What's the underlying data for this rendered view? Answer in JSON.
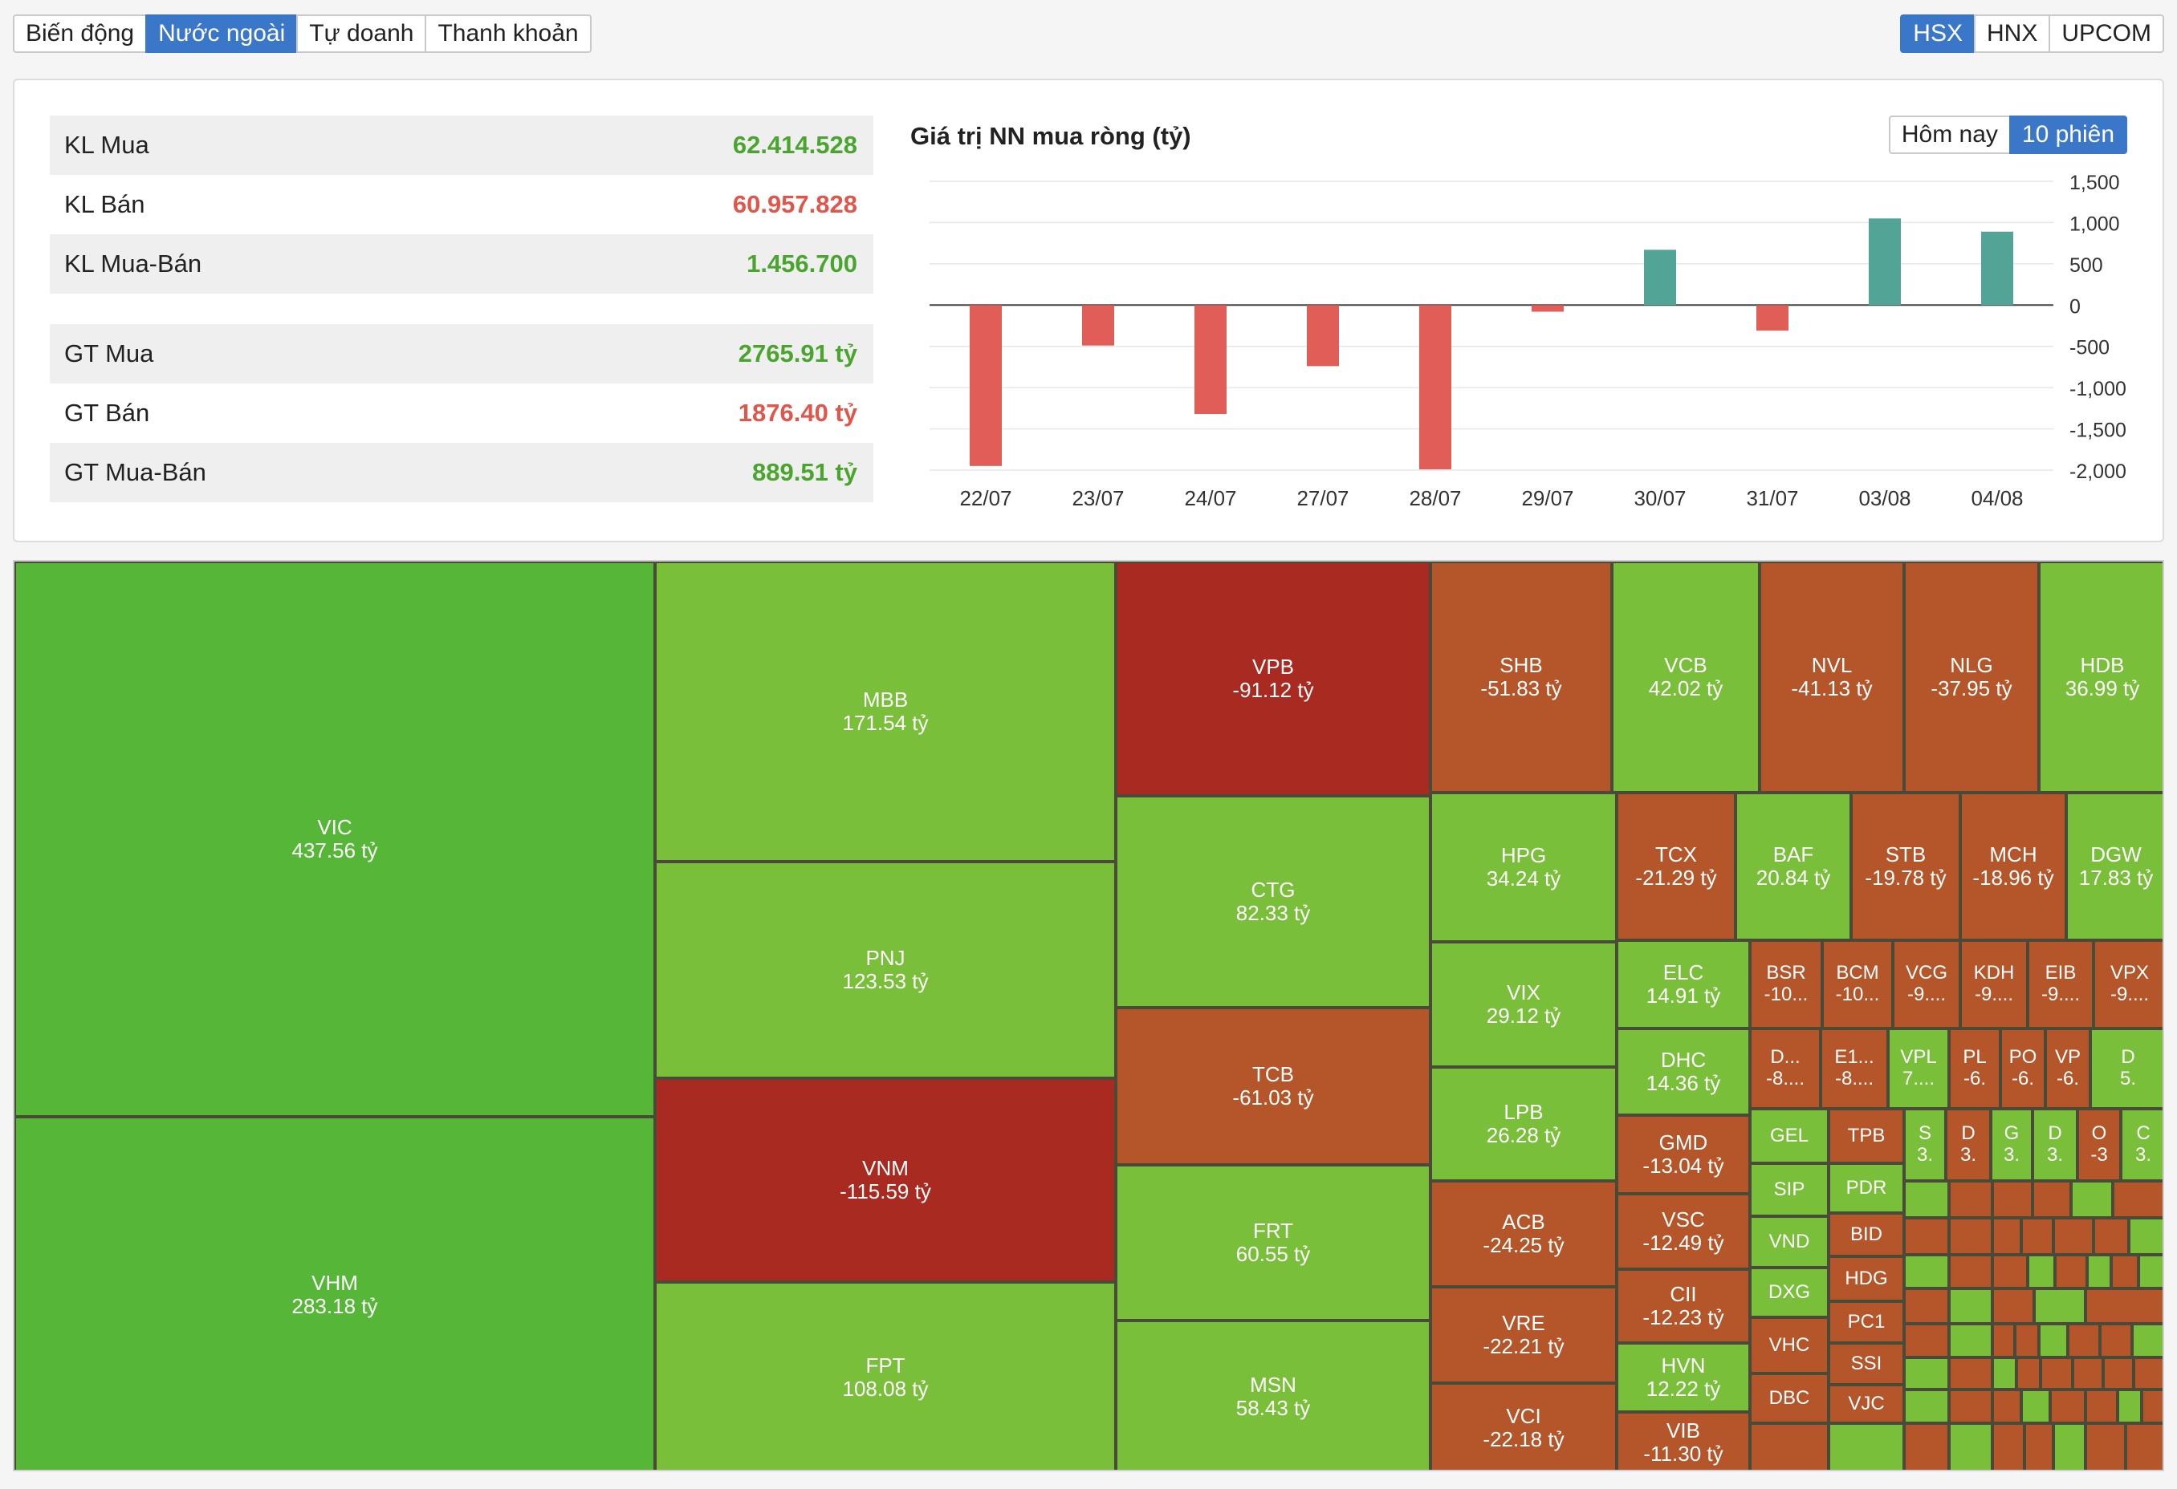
{
  "tabs": [
    {
      "label": "Biến động",
      "active": false
    },
    {
      "label": "Nước ngoài",
      "active": true
    },
    {
      "label": "Tự doanh",
      "active": false
    },
    {
      "label": "Thanh khoản",
      "active": false
    }
  ],
  "exchanges": [
    {
      "label": "HSX",
      "active": true
    },
    {
      "label": "HNX",
      "active": false
    },
    {
      "label": "UPCOM",
      "active": false
    }
  ],
  "stats": {
    "kl_mua": {
      "label": "KL Mua",
      "value": "62.414.528"
    },
    "kl_ban": {
      "label": "KL Bán",
      "value": "60.957.828"
    },
    "kl_net": {
      "label": "KL Mua-Bán",
      "value": "1.456.700"
    },
    "gt_mua": {
      "label": "GT Mua",
      "value": "2765.91 tỷ"
    },
    "gt_ban": {
      "label": "GT Bán",
      "value": "1876.40 tỷ"
    },
    "gt_net": {
      "label": "GT Mua-Bán",
      "value": "889.51 tỷ"
    }
  },
  "range_buttons": [
    {
      "label": "Hôm nay",
      "active": false
    },
    {
      "label": "10 phiên",
      "active": true
    }
  ],
  "colors": {
    "positive": "#4aa52e",
    "negative": "#e0564a",
    "bar_up": "#52a596",
    "bar_down": "#e05d58",
    "tile_strong_up": "#56b638",
    "tile_up": "#79bf3a",
    "tile_down": "#b4552a",
    "tile_strong_down": "#a82a20",
    "active": "#3a77c9"
  },
  "chart_data": {
    "type": "bar",
    "title": "Giá trị NN mua ròng (tỷ)",
    "categories": [
      "22/07",
      "23/07",
      "24/07",
      "27/07",
      "28/07",
      "29/07",
      "30/07",
      "31/07",
      "03/08",
      "04/08"
    ],
    "values": [
      -1950,
      -490,
      -1320,
      -740,
      -1990,
      -80,
      670,
      -310,
      1050,
      890
    ],
    "ylim": [
      -2000,
      1500
    ],
    "yticks": [
      {
        "v": 1500,
        "label": "1,500"
      },
      {
        "v": 1000,
        "label": "1,000"
      },
      {
        "v": 500,
        "label": "500"
      },
      {
        "v": 0,
        "label": "0"
      },
      {
        "v": -500,
        "label": "-500"
      },
      {
        "v": -1000,
        "label": "-1,000"
      },
      {
        "v": -1500,
        "label": "-1,500"
      },
      {
        "v": -2000,
        "label": "-2,000"
      }
    ],
    "grid": true,
    "axis_side": "right"
  },
  "treemap": [
    {
      "sym": "VIC",
      "val": "437.56 tỷ",
      "c": "su",
      "r": [
        0,
        0,
        798,
        692
      ]
    },
    {
      "sym": "VHM",
      "val": "283.18 tỷ",
      "c": "su",
      "r": [
        0,
        692,
        798,
        444
      ]
    },
    {
      "sym": "MBB",
      "val": "171.54 tỷ",
      "c": "up",
      "r": [
        798,
        0,
        574,
        374
      ]
    },
    {
      "sym": "PNJ",
      "val": "123.53 tỷ",
      "c": "up",
      "r": [
        798,
        374,
        574,
        270
      ]
    },
    {
      "sym": "VNM",
      "val": "-115.59 tỷ",
      "c": "sd",
      "r": [
        798,
        644,
        574,
        254
      ]
    },
    {
      "sym": "FPT",
      "val": "108.08 tỷ",
      "c": "up",
      "r": [
        798,
        898,
        574,
        238
      ]
    },
    {
      "sym": "VPB",
      "val": "-91.12 tỷ",
      "c": "sd",
      "r": [
        1372,
        0,
        392,
        292
      ]
    },
    {
      "sym": "CTG",
      "val": "82.33 tỷ",
      "c": "up",
      "r": [
        1372,
        292,
        392,
        264
      ]
    },
    {
      "sym": "TCB",
      "val": "-61.03 tỷ",
      "c": "dn",
      "r": [
        1372,
        556,
        392,
        196
      ]
    },
    {
      "sym": "FRT",
      "val": "60.55 tỷ",
      "c": "up",
      "r": [
        1372,
        752,
        392,
        194
      ]
    },
    {
      "sym": "MSN",
      "val": "58.43 tỷ",
      "c": "up",
      "r": [
        1372,
        946,
        392,
        190
      ]
    },
    {
      "sym": "SHB",
      "val": "-51.83 tỷ",
      "c": "dn",
      "r": [
        1764,
        0,
        226,
        288
      ]
    },
    {
      "sym": "VCB",
      "val": "42.02 tỷ",
      "c": "up",
      "r": [
        1990,
        0,
        184,
        288
      ]
    },
    {
      "sym": "NVL",
      "val": "-41.13 tỷ",
      "c": "dn",
      "r": [
        2174,
        0,
        180,
        288
      ]
    },
    {
      "sym": "NLG",
      "val": "-37.95 tỷ",
      "c": "dn",
      "r": [
        2354,
        0,
        168,
        288
      ]
    },
    {
      "sym": "HDB",
      "val": "36.99 tỷ",
      "c": "up",
      "r": [
        2522,
        0,
        158,
        288
      ]
    },
    {
      "sym": "HPG",
      "val": "34.24 tỷ",
      "c": "up",
      "r": [
        1764,
        288,
        232,
        186
      ]
    },
    {
      "sym": "VIX",
      "val": "29.12 tỷ",
      "c": "up",
      "r": [
        1764,
        474,
        232,
        156
      ]
    },
    {
      "sym": "LPB",
      "val": "26.28 tỷ",
      "c": "up",
      "r": [
        1764,
        630,
        232,
        142
      ]
    },
    {
      "sym": "ACB",
      "val": "-24.25 tỷ",
      "c": "dn",
      "r": [
        1764,
        772,
        232,
        132
      ]
    },
    {
      "sym": "VRE",
      "val": "-22.21 tỷ",
      "c": "dn",
      "r": [
        1764,
        904,
        232,
        120
      ]
    },
    {
      "sym": "VCI",
      "val": "-22.18 tỷ",
      "c": "dn",
      "r": [
        1764,
        1024,
        232,
        112
      ]
    },
    {
      "sym": "TCX",
      "val": "-21.29 tỷ",
      "c": "dn",
      "r": [
        1996,
        288,
        148,
        184
      ]
    },
    {
      "sym": "BAF",
      "val": "20.84 tỷ",
      "c": "up",
      "r": [
        2144,
        288,
        144,
        184
      ]
    },
    {
      "sym": "STB",
      "val": "-19.78 tỷ",
      "c": "dn",
      "r": [
        2288,
        288,
        136,
        184
      ]
    },
    {
      "sym": "MCH",
      "val": "-18.96 tỷ",
      "c": "dn",
      "r": [
        2424,
        288,
        132,
        184
      ]
    },
    {
      "sym": "DGW",
      "val": "17.83 tỷ",
      "c": "up",
      "r": [
        2556,
        288,
        124,
        184
      ]
    },
    {
      "sym": "ELC",
      "val": "14.91 tỷ",
      "c": "up",
      "r": [
        1996,
        472,
        166,
        110
      ]
    },
    {
      "sym": "DHC",
      "val": "14.36 tỷ",
      "c": "up",
      "r": [
        1996,
        582,
        166,
        108
      ]
    },
    {
      "sym": "GMD",
      "val": "-13.04 tỷ",
      "c": "dn",
      "r": [
        1996,
        690,
        166,
        98
      ]
    },
    {
      "sym": "VSC",
      "val": "-12.49 tỷ",
      "c": "dn",
      "r": [
        1996,
        788,
        166,
        94
      ]
    },
    {
      "sym": "CII",
      "val": "-12.23 tỷ",
      "c": "dn",
      "r": [
        1996,
        882,
        166,
        92
      ]
    },
    {
      "sym": "HVN",
      "val": "12.22 tỷ",
      "c": "up",
      "r": [
        1996,
        974,
        166,
        86
      ]
    },
    {
      "sym": "VIB",
      "val": "-11.30 tỷ",
      "c": "dn",
      "r": [
        1996,
        1060,
        166,
        76
      ]
    },
    {
      "sym": "BSR",
      "val": "-10...",
      "c": "dn",
      "r": [
        2162,
        472,
        90,
        110
      ]
    },
    {
      "sym": "BCM",
      "val": "-10...",
      "c": "dn",
      "r": [
        2252,
        472,
        88,
        110
      ]
    },
    {
      "sym": "VCG",
      "val": "-9....",
      "c": "dn",
      "r": [
        2340,
        472,
        84,
        110
      ]
    },
    {
      "sym": "KDH",
      "val": "-9....",
      "c": "dn",
      "r": [
        2424,
        472,
        84,
        110
      ]
    },
    {
      "sym": "EIB",
      "val": "-9....",
      "c": "dn",
      "r": [
        2508,
        472,
        82,
        110
      ]
    },
    {
      "sym": "VPX",
      "val": "-9....",
      "c": "dn",
      "r": [
        2590,
        472,
        90,
        110
      ]
    },
    {
      "sym": "D...",
      "val": "-8....",
      "c": "dn",
      "r": [
        2162,
        582,
        88,
        100
      ]
    },
    {
      "sym": "E1...",
      "val": "-8....",
      "c": "dn",
      "r": [
        2250,
        582,
        84,
        100
      ]
    },
    {
      "sym": "VPL",
      "val": "7....",
      "c": "up",
      "r": [
        2334,
        582,
        76,
        100
      ]
    },
    {
      "sym": "PL",
      "val": "-6.",
      "c": "dn",
      "r": [
        2410,
        582,
        64,
        100
      ]
    },
    {
      "sym": "PO",
      "val": "-6.",
      "c": "dn",
      "r": [
        2474,
        582,
        56,
        100
      ]
    },
    {
      "sym": "VP",
      "val": "-6.",
      "c": "dn",
      "r": [
        2530,
        582,
        56,
        100
      ]
    },
    {
      "sym": "D",
      "val": "5.",
      "c": "up",
      "r": [
        2586,
        582,
        94,
        100
      ]
    },
    {
      "sym": "GEL",
      "val": "",
      "c": "up",
      "r": [
        2162,
        682,
        98,
        68
      ]
    },
    {
      "sym": "TPB",
      "val": "",
      "c": "dn",
      "r": [
        2260,
        682,
        94,
        68
      ]
    },
    {
      "sym": "S",
      "val": "3.",
      "c": "up",
      "r": [
        2354,
        682,
        52,
        90
      ]
    },
    {
      "sym": "D",
      "val": "3.",
      "c": "dn",
      "r": [
        2406,
        682,
        56,
        90
      ]
    },
    {
      "sym": "G",
      "val": "3.",
      "c": "up",
      "r": [
        2462,
        682,
        52,
        90
      ]
    },
    {
      "sym": "D",
      "val": "3.",
      "c": "up",
      "r": [
        2514,
        682,
        56,
        90
      ]
    },
    {
      "sym": "O",
      "val": "-3",
      "c": "dn",
      "r": [
        2570,
        682,
        54,
        90
      ]
    },
    {
      "sym": "C",
      "val": "3.",
      "c": "up",
      "r": [
        2624,
        682,
        56,
        90
      ]
    },
    {
      "sym": "SIP",
      "val": "",
      "c": "up",
      "r": [
        2162,
        750,
        98,
        66
      ]
    },
    {
      "sym": "PDR",
      "val": "",
      "c": "up",
      "r": [
        2260,
        750,
        94,
        62
      ]
    },
    {
      "sym": "VND",
      "val": "",
      "c": "up",
      "r": [
        2162,
        816,
        98,
        64
      ]
    },
    {
      "sym": "BID",
      "val": "",
      "c": "dn",
      "r": [
        2260,
        812,
        94,
        54
      ]
    },
    {
      "sym": "HDG",
      "val": "",
      "c": "dn",
      "r": [
        2260,
        866,
        94,
        56
      ]
    },
    {
      "sym": "DXG",
      "val": "",
      "c": "up",
      "r": [
        2162,
        880,
        98,
        62
      ]
    },
    {
      "sym": "PC1",
      "val": "",
      "c": "dn",
      "r": [
        2260,
        922,
        94,
        52
      ]
    },
    {
      "sym": "VHC",
      "val": "",
      "c": "dn",
      "r": [
        2162,
        942,
        98,
        70
      ]
    },
    {
      "sym": "SSI",
      "val": "",
      "c": "dn",
      "r": [
        2260,
        974,
        94,
        52
      ]
    },
    {
      "sym": "DBC",
      "val": "",
      "c": "dn",
      "r": [
        2162,
        1012,
        98,
        62
      ]
    },
    {
      "sym": "VJC",
      "val": "",
      "c": "dn",
      "r": [
        2260,
        1026,
        94,
        48
      ]
    }
  ]
}
